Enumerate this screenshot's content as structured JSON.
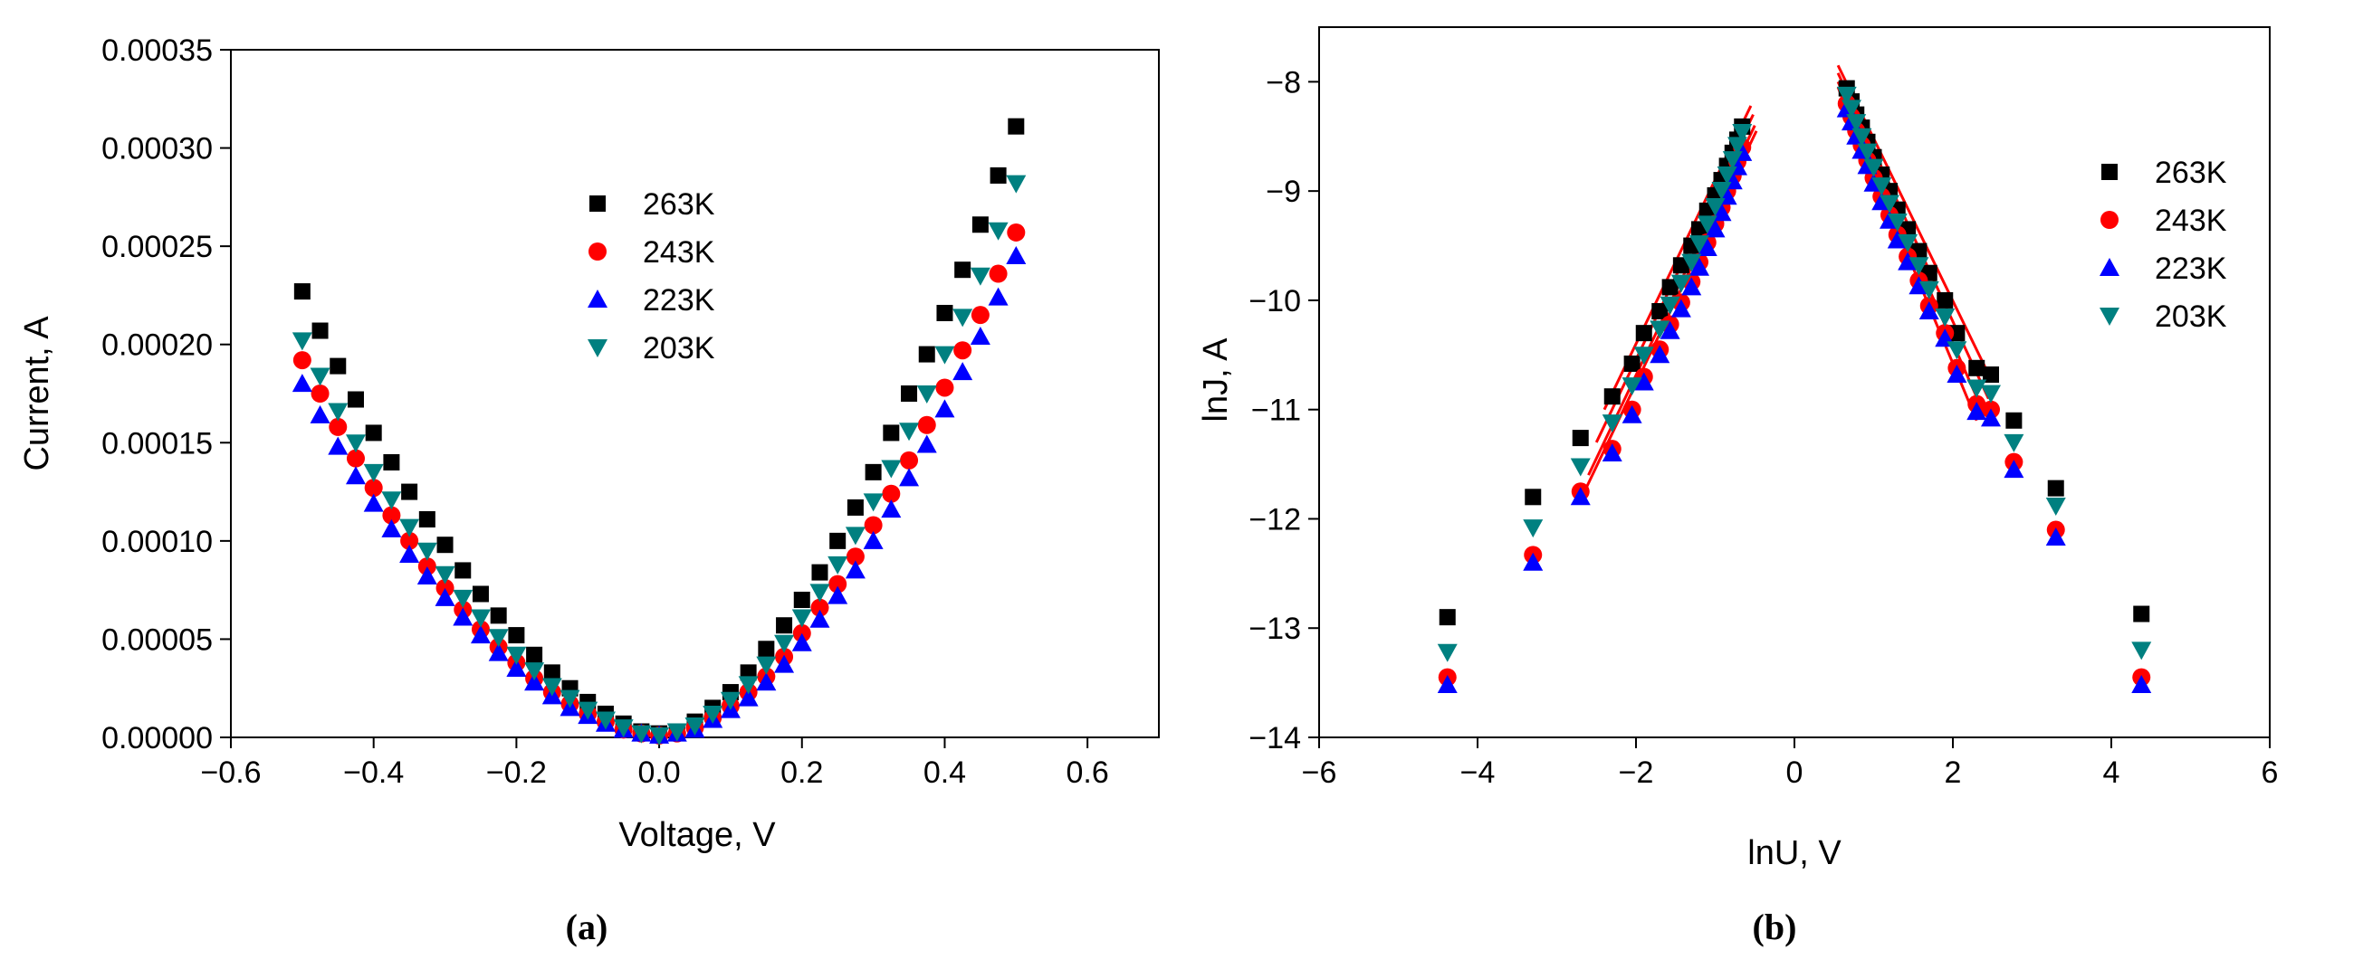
{
  "chart_data": [
    {
      "type": "scatter",
      "panel_label": "(a)",
      "title": "",
      "xlabel": "Voltage, V",
      "ylabel": "Current, A",
      "xlim": [
        -0.6,
        0.7
      ],
      "ylim": [
        0,
        0.00035
      ],
      "xticks": [
        -0.6,
        -0.4,
        -0.2,
        0.0,
        0.2,
        0.4,
        0.6
      ],
      "xtick_labels": [
        "−0.6",
        "−0.4",
        "−0.2",
        "0.0",
        "0.2",
        "0.4",
        "0.6"
      ],
      "yticks": [
        0,
        5e-05,
        0.0001,
        0.00015,
        0.0002,
        0.00025,
        0.0003,
        0.00035
      ],
      "ytick_labels": [
        "0.00000",
        "0.00005",
        "0.00010",
        "0.00015",
        "0.00020",
        "0.00025",
        "0.00030",
        "0.00035"
      ],
      "legend_position": "upper-center",
      "x": [
        -0.5,
        -0.475,
        -0.45,
        -0.425,
        -0.4,
        -0.375,
        -0.35,
        -0.325,
        -0.3,
        -0.275,
        -0.25,
        -0.225,
        -0.2,
        -0.175,
        -0.15,
        -0.125,
        -0.1,
        -0.075,
        -0.05,
        -0.025,
        0,
        0.025,
        0.05,
        0.075,
        0.1,
        0.125,
        0.15,
        0.175,
        0.2,
        0.225,
        0.25,
        0.275,
        0.3,
        0.325,
        0.35,
        0.375,
        0.4,
        0.425,
        0.45,
        0.475,
        0.5
      ],
      "series": [
        {
          "name": "263K",
          "marker": "square",
          "color": "#000000",
          "values": [
            0.000227,
            0.000207,
            0.000189,
            0.000172,
            0.000155,
            0.00014,
            0.000125,
            0.000111,
            9.8e-05,
            8.5e-05,
            7.3e-05,
            6.2e-05,
            5.2e-05,
            4.2e-05,
            3.3e-05,
            2.5e-05,
            1.8e-05,
            1.2e-05,
            7e-06,
            3e-06,
            2e-06,
            3e-06,
            8e-06,
            1.5e-05,
            2.3e-05,
            3.3e-05,
            4.5e-05,
            5.7e-05,
            7e-05,
            8.4e-05,
            0.0001,
            0.000117,
            0.000135,
            0.000155,
            0.000175,
            0.000195,
            0.000216,
            0.000238,
            0.000261,
            0.000286,
            0.000311
          ]
        },
        {
          "name": "243K",
          "marker": "circle",
          "color": "#ff0000",
          "values": [
            0.000192,
            0.000175,
            0.000158,
            0.000142,
            0.000127,
            0.000113,
            0.0001,
            8.7e-05,
            7.6e-05,
            6.5e-05,
            5.5e-05,
            4.6e-05,
            3.8e-05,
            3e-05,
            2.3e-05,
            1.7e-05,
            1.2e-05,
            8e-06,
            4e-06,
            2e-06,
            1e-06,
            2e-06,
            5e-06,
            1e-05,
            1.6e-05,
            2.3e-05,
            3.1e-05,
            4.1e-05,
            5.3e-05,
            6.6e-05,
            7.8e-05,
            9.2e-05,
            0.000108,
            0.000124,
            0.000141,
            0.000159,
            0.000178,
            0.000197,
            0.000215,
            0.000236,
            0.000257
          ]
        },
        {
          "name": "223K",
          "marker": "triangle-up",
          "color": "#0000ff",
          "values": [
            0.00018,
            0.000164,
            0.000148,
            0.000133,
            0.000119,
            0.000106,
            9.3e-05,
            8.2e-05,
            7.1e-05,
            6.1e-05,
            5.2e-05,
            4.3e-05,
            3.5e-05,
            2.8e-05,
            2.1e-05,
            1.5e-05,
            1.1e-05,
            7e-06,
            4e-06,
            2e-06,
            1e-06,
            2e-06,
            4e-06,
            9e-06,
            1.4e-05,
            2e-05,
            2.8e-05,
            3.7e-05,
            4.8e-05,
            6e-05,
            7.2e-05,
            8.5e-05,
            0.0001,
            0.000116,
            0.000132,
            0.000149,
            0.000167,
            0.000186,
            0.000204,
            0.000224,
            0.000245
          ]
        },
        {
          "name": "203K",
          "marker": "triangle-down",
          "color": "#008080",
          "values": [
            0.000202,
            0.000184,
            0.000166,
            0.00015,
            0.000135,
            0.000121,
            0.000107,
            9.5e-05,
            8.3e-05,
            7.1e-05,
            6.1e-05,
            5.1e-05,
            4.2e-05,
            3.4e-05,
            2.6e-05,
            2e-05,
            1.4e-05,
            9e-06,
            5e-06,
            2e-06,
            1e-06,
            3e-06,
            6e-06,
            1.2e-05,
            1.9e-05,
            2.7e-05,
            3.7e-05,
            4.8e-05,
            6.1e-05,
            7.4e-05,
            8.8e-05,
            0.000103,
            0.00012,
            0.000137,
            0.000156,
            0.000175,
            0.000195,
            0.000214,
            0.000235,
            0.000258,
            0.000282
          ]
        }
      ]
    },
    {
      "type": "scatter",
      "panel_label": "(b)",
      "title": "",
      "xlabel": "lnU, V",
      "ylabel": "lnJ, A",
      "xlim": [
        -6,
        6
      ],
      "ylim": [
        -14,
        -7.5
      ],
      "xticks": [
        -6,
        -4,
        -2,
        0,
        2,
        4,
        6
      ],
      "xtick_labels": [
        "−6",
        "−4",
        "−2",
        "0",
        "2",
        "4",
        "6"
      ],
      "yticks": [
        -14,
        -13,
        -12,
        -11,
        -10,
        -9,
        -8
      ],
      "ytick_labels": [
        "−14",
        "−13",
        "−12",
        "−11",
        "−10",
        "−9",
        "−8"
      ],
      "legend_position": "upper-right",
      "fit_line_color": "#ff0000",
      "series": [
        {
          "name": "263K",
          "marker": "square",
          "color": "#000000",
          "points": [
            [
              -4.38,
              -12.9
            ],
            [
              -3.3,
              -11.8
            ],
            [
              -2.7,
              -11.26
            ],
            [
              -2.3,
              -10.88
            ],
            [
              -2.05,
              -10.58
            ],
            [
              -1.9,
              -10.3
            ],
            [
              -1.7,
              -10.1
            ],
            [
              -1.57,
              -9.88
            ],
            [
              -1.43,
              -9.68
            ],
            [
              -1.3,
              -9.5
            ],
            [
              -1.2,
              -9.35
            ],
            [
              -1.1,
              -9.18
            ],
            [
              -1.0,
              -9.04
            ],
            [
              -0.92,
              -8.9
            ],
            [
              -0.85,
              -8.77
            ],
            [
              -0.78,
              -8.65
            ],
            [
              -0.72,
              -8.53
            ],
            [
              -0.66,
              -8.41
            ],
            [
              0.66,
              -8.06
            ],
            [
              0.72,
              -8.18
            ],
            [
              0.78,
              -8.3
            ],
            [
              0.85,
              -8.42
            ],
            [
              0.92,
              -8.55
            ],
            [
              1.0,
              -8.69
            ],
            [
              1.1,
              -8.85
            ],
            [
              1.2,
              -9.0
            ],
            [
              1.3,
              -9.17
            ],
            [
              1.43,
              -9.35
            ],
            [
              1.57,
              -9.55
            ],
            [
              1.7,
              -9.75
            ],
            [
              1.9,
              -10.0
            ],
            [
              2.05,
              -10.3
            ],
            [
              2.3,
              -10.62
            ],
            [
              2.48,
              -10.68
            ],
            [
              2.77,
              -11.1
            ],
            [
              3.3,
              -11.72
            ],
            [
              4.38,
              -12.87
            ]
          ]
        },
        {
          "name": "243K",
          "marker": "circle",
          "color": "#ff0000",
          "points": [
            [
              -4.38,
              -13.45
            ],
            [
              -3.3,
              -12.33
            ],
            [
              -2.7,
              -11.75
            ],
            [
              -2.3,
              -11.36
            ],
            [
              -2.05,
              -11.0
            ],
            [
              -1.9,
              -10.7
            ],
            [
              -1.7,
              -10.45
            ],
            [
              -1.57,
              -10.22
            ],
            [
              -1.43,
              -10.02
            ],
            [
              -1.3,
              -9.83
            ],
            [
              -1.2,
              -9.65
            ],
            [
              -1.1,
              -9.47
            ],
            [
              -1.0,
              -9.3
            ],
            [
              -0.92,
              -9.15
            ],
            [
              -0.85,
              -9.0
            ],
            [
              -0.78,
              -8.86
            ],
            [
              -0.72,
              -8.73
            ],
            [
              -0.66,
              -8.6
            ],
            [
              0.66,
              -8.2
            ],
            [
              0.72,
              -8.32
            ],
            [
              0.78,
              -8.45
            ],
            [
              0.85,
              -8.58
            ],
            [
              0.92,
              -8.72
            ],
            [
              1.0,
              -8.88
            ],
            [
              1.1,
              -9.05
            ],
            [
              1.2,
              -9.22
            ],
            [
              1.3,
              -9.4
            ],
            [
              1.43,
              -9.6
            ],
            [
              1.57,
              -9.82
            ],
            [
              1.7,
              -10.05
            ],
            [
              1.9,
              -10.3
            ],
            [
              2.05,
              -10.62
            ],
            [
              2.3,
              -10.95
            ],
            [
              2.48,
              -11.0
            ],
            [
              2.77,
              -11.48
            ],
            [
              3.3,
              -12.1
            ],
            [
              4.38,
              -13.45
            ]
          ]
        },
        {
          "name": "223K",
          "marker": "triangle-up",
          "color": "#0000ff",
          "points": [
            [
              -4.38,
              -13.52
            ],
            [
              -3.3,
              -12.4
            ],
            [
              -2.7,
              -11.8
            ],
            [
              -2.3,
              -11.4
            ],
            [
              -2.05,
              -11.05
            ],
            [
              -1.9,
              -10.75
            ],
            [
              -1.7,
              -10.5
            ],
            [
              -1.57,
              -10.28
            ],
            [
              -1.43,
              -10.08
            ],
            [
              -1.3,
              -9.88
            ],
            [
              -1.2,
              -9.7
            ],
            [
              -1.1,
              -9.52
            ],
            [
              -1.0,
              -9.35
            ],
            [
              -0.92,
              -9.2
            ],
            [
              -0.85,
              -9.05
            ],
            [
              -0.78,
              -8.91
            ],
            [
              -0.72,
              -8.78
            ],
            [
              -0.66,
              -8.65
            ],
            [
              0.66,
              -8.25
            ],
            [
              0.72,
              -8.37
            ],
            [
              0.78,
              -8.5
            ],
            [
              0.85,
              -8.63
            ],
            [
              0.92,
              -8.77
            ],
            [
              1.0,
              -8.93
            ],
            [
              1.1,
              -9.1
            ],
            [
              1.2,
              -9.27
            ],
            [
              1.3,
              -9.45
            ],
            [
              1.43,
              -9.65
            ],
            [
              1.57,
              -9.87
            ],
            [
              1.7,
              -10.1
            ],
            [
              1.9,
              -10.35
            ],
            [
              2.05,
              -10.68
            ],
            [
              2.3,
              -11.02
            ],
            [
              2.48,
              -11.08
            ],
            [
              2.77,
              -11.55
            ],
            [
              3.3,
              -12.17
            ],
            [
              4.38,
              -13.52
            ]
          ]
        },
        {
          "name": "203K",
          "marker": "triangle-down",
          "color": "#008080",
          "points": [
            [
              -4.38,
              -13.22
            ],
            [
              -3.3,
              -12.08
            ],
            [
              -2.7,
              -11.52
            ],
            [
              -2.3,
              -11.12
            ],
            [
              -2.05,
              -10.78
            ],
            [
              -1.9,
              -10.5
            ],
            [
              -1.7,
              -10.26
            ],
            [
              -1.57,
              -10.04
            ],
            [
              -1.43,
              -9.84
            ],
            [
              -1.3,
              -9.65
            ],
            [
              -1.2,
              -9.48
            ],
            [
              -1.1,
              -9.3
            ],
            [
              -1.0,
              -9.14
            ],
            [
              -0.92,
              -8.99
            ],
            [
              -0.85,
              -8.85
            ],
            [
              -0.78,
              -8.71
            ],
            [
              -0.72,
              -8.58
            ],
            [
              -0.66,
              -8.46
            ],
            [
              0.66,
              -8.12
            ],
            [
              0.72,
              -8.24
            ],
            [
              0.78,
              -8.37
            ],
            [
              0.85,
              -8.5
            ],
            [
              0.92,
              -8.64
            ],
            [
              1.0,
              -8.78
            ],
            [
              1.1,
              -8.95
            ],
            [
              1.2,
              -9.11
            ],
            [
              1.3,
              -9.28
            ],
            [
              1.43,
              -9.47
            ],
            [
              1.57,
              -9.68
            ],
            [
              1.7,
              -9.9
            ],
            [
              1.9,
              -10.15
            ],
            [
              2.05,
              -10.45
            ],
            [
              2.3,
              -10.8
            ],
            [
              2.48,
              -10.85
            ],
            [
              2.77,
              -11.3
            ],
            [
              3.3,
              -11.88
            ],
            [
              4.38,
              -13.2
            ]
          ]
        }
      ],
      "fit_lines": [
        {
          "series": "263K",
          "from": [
            -2.4,
            -11.0
          ],
          "to": [
            -0.55,
            -8.22
          ]
        },
        {
          "series": "243K",
          "from": [
            -2.6,
            -11.6
          ],
          "to": [
            -0.5,
            -8.4
          ]
        },
        {
          "series": "223K",
          "from": [
            -2.65,
            -11.75
          ],
          "to": [
            -0.48,
            -8.45
          ]
        },
        {
          "series": "203K",
          "from": [
            -2.5,
            -11.3
          ],
          "to": [
            -0.52,
            -8.3
          ]
        },
        {
          "series": "263K",
          "from": [
            0.55,
            -7.85
          ],
          "to": [
            2.5,
            -10.75
          ]
        },
        {
          "series": "243K",
          "from": [
            0.55,
            -8.0
          ],
          "to": [
            2.4,
            -11.05
          ]
        },
        {
          "series": "223K",
          "from": [
            0.55,
            -8.05
          ],
          "to": [
            2.3,
            -11.1
          ]
        },
        {
          "series": "203K",
          "from": [
            0.55,
            -7.92
          ],
          "to": [
            2.45,
            -10.9
          ]
        }
      ]
    }
  ]
}
